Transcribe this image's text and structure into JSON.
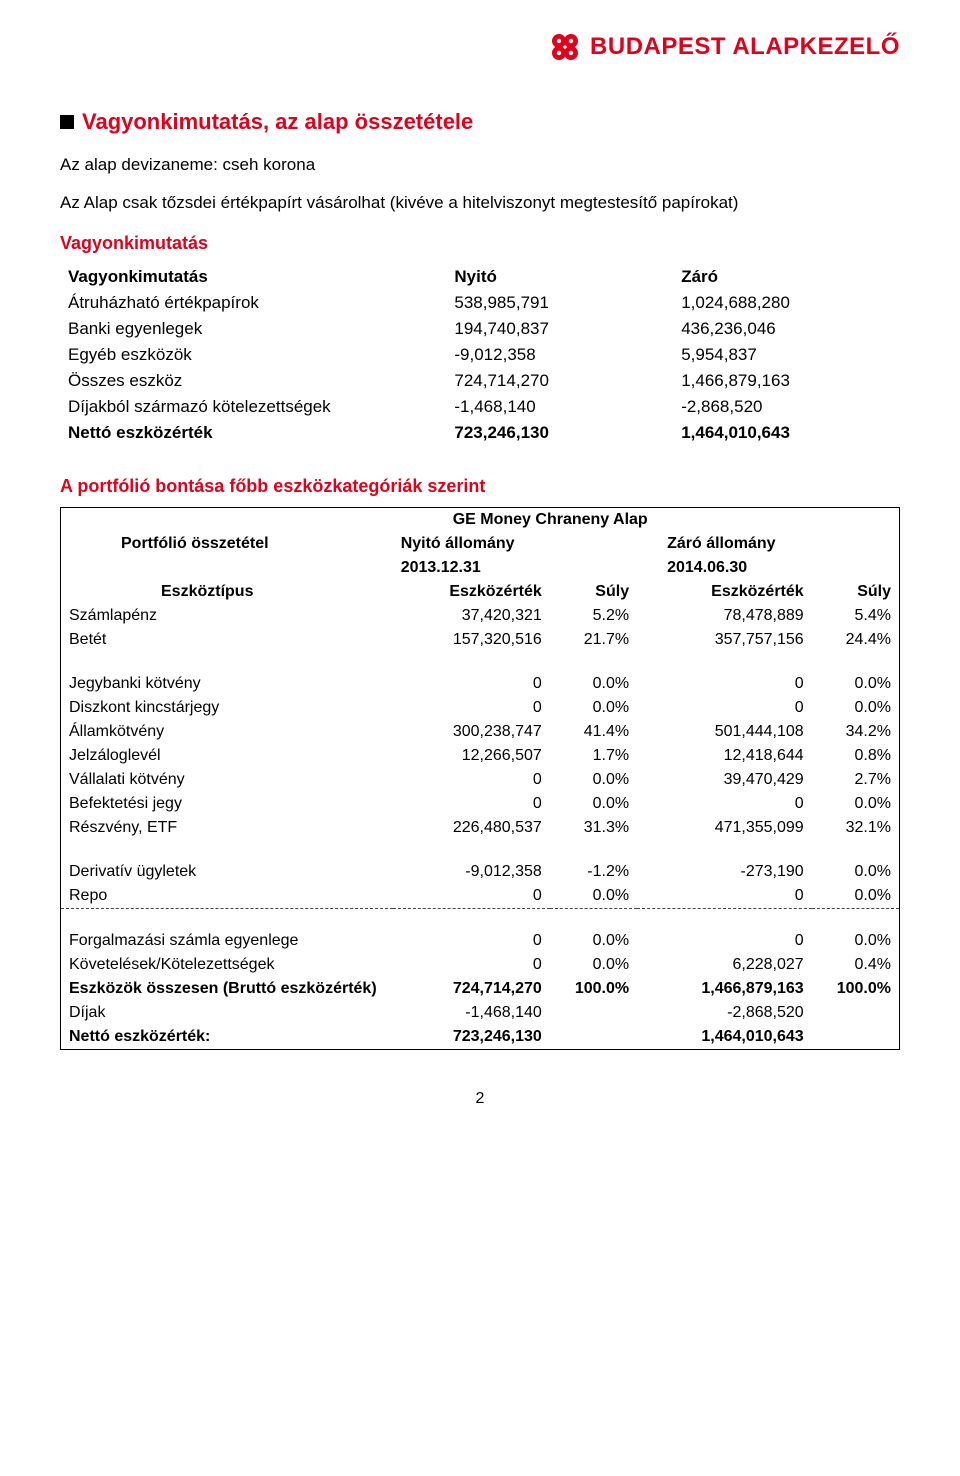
{
  "header": {
    "brand_text": "BUDAPEST ALAPKEZELŐ",
    "brand_color": "#e2001a"
  },
  "section1": {
    "title": "Vagyonkimutatás, az alap összetétele",
    "line1": "Az alap devizaneme: cseh korona",
    "line2": "Az Alap csak tőzsdei értékpapírt vásárolhat (kivéve a hitelviszonyt megtestesítő papírokat)",
    "subheading": "Vagyonkimutatás"
  },
  "vagyon_table": {
    "col_label": "Vagyonkimutatás",
    "col_open": "Nyitó",
    "col_close": "Záró",
    "rows": [
      {
        "label": "Átruházható értékpapírok",
        "open": "538,985,791",
        "close": "1,024,688,280",
        "bold": false
      },
      {
        "label": "Banki egyenlegek",
        "open": "194,740,837",
        "close": "436,236,046",
        "bold": false
      },
      {
        "label": "Egyéb eszközök",
        "open": "-9,012,358",
        "close": "5,954,837",
        "bold": false
      },
      {
        "label": "Összes eszköz",
        "open": "724,714,270",
        "close": "1,466,879,163",
        "bold": false
      },
      {
        "label": "Díjakból származó kötelezettségek",
        "open": "-1,468,140",
        "close": "-2,868,520",
        "bold": false
      },
      {
        "label": "Nettó eszközérték",
        "open": "723,246,130",
        "close": "1,464,010,643",
        "bold": true
      }
    ]
  },
  "section2": {
    "subheading": "A portfólió bontása főbb eszközkategóriák szerint"
  },
  "portf_table": {
    "title_top": "GE Money Chraneny Alap",
    "portf_label": "Portfólió összetétel",
    "open_label": "Nyitó állomány",
    "close_label": "Záró állomány",
    "open_date": "2013.12.31",
    "close_date": "2014.06.30",
    "type_label": "Eszköztípus",
    "val_label": "Eszközérték",
    "weight_label": "Súly",
    "group1": [
      {
        "label": "Számlapénz",
        "ov": "37,420,321",
        "ow": "5.2%",
        "cv": "78,478,889",
        "cw": "5.4%"
      },
      {
        "label": "Betét",
        "ov": "157,320,516",
        "ow": "21.7%",
        "cv": "357,757,156",
        "cw": "24.4%"
      }
    ],
    "group2": [
      {
        "label": "Jegybanki kötvény",
        "ov": "0",
        "ow": "0.0%",
        "cv": "0",
        "cw": "0.0%"
      },
      {
        "label": "Diszkont kincstárjegy",
        "ov": "0",
        "ow": "0.0%",
        "cv": "0",
        "cw": "0.0%"
      },
      {
        "label": "Államkötvény",
        "ov": "300,238,747",
        "ow": "41.4%",
        "cv": "501,444,108",
        "cw": "34.2%"
      },
      {
        "label": "Jelzáloglevél",
        "ov": "12,266,507",
        "ow": "1.7%",
        "cv": "12,418,644",
        "cw": "0.8%"
      },
      {
        "label": "Vállalati kötvény",
        "ov": "0",
        "ow": "0.0%",
        "cv": "39,470,429",
        "cw": "2.7%"
      },
      {
        "label": "Befektetési jegy",
        "ov": "0",
        "ow": "0.0%",
        "cv": "0",
        "cw": "0.0%"
      },
      {
        "label": "Részvény, ETF",
        "ov": "226,480,537",
        "ow": "31.3%",
        "cv": "471,355,099",
        "cw": "32.1%"
      }
    ],
    "group3": [
      {
        "label": "Derivatív ügyletek",
        "ov": "-9,012,358",
        "ow": "-1.2%",
        "cv": "-273,190",
        "cw": "0.0%"
      },
      {
        "label": "Repo",
        "ov": "0",
        "ow": "0.0%",
        "cv": "0",
        "cw": "0.0%"
      }
    ],
    "group4": [
      {
        "label": "Forgalmazási számla egyenlege",
        "ov": "0",
        "ow": "0.0%",
        "cv": "0",
        "cw": "0.0%"
      },
      {
        "label": "Követelések/Kötelezettségek",
        "ov": "0",
        "ow": "0.0%",
        "cv": "6,228,027",
        "cw": "0.4%"
      }
    ],
    "total_row": {
      "label": "Eszközök összesen (Bruttó eszközérték)",
      "ov": "724,714,270",
      "ow": "100.0%",
      "cv": "1,466,879,163",
      "cw": "100.0%"
    },
    "fees_row": {
      "label": "Díjak",
      "ov": "-1,468,140",
      "ow": "",
      "cv": "-2,868,520",
      "cw": ""
    },
    "net_row": {
      "label": "Nettó eszközérték:",
      "ov": "723,246,130",
      "ow": "",
      "cv": "1,464,010,643",
      "cw": ""
    }
  },
  "page_number": "2"
}
